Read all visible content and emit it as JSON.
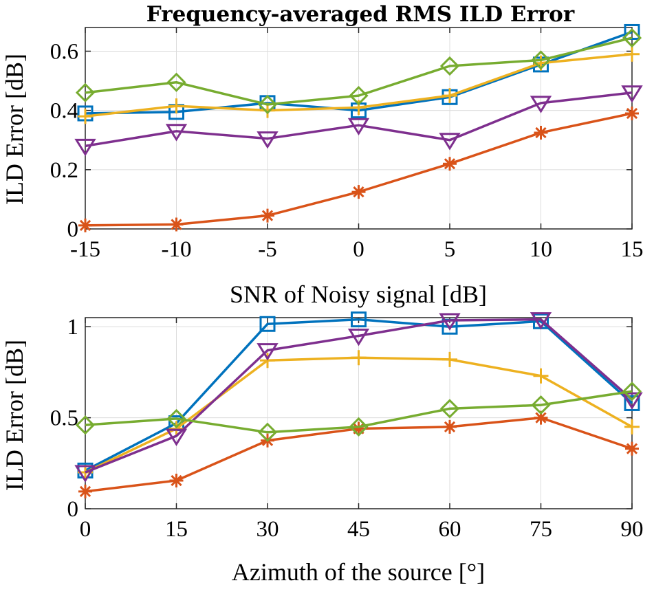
{
  "chart_data": [
    {
      "type": "line",
      "title": "Frequency-averaged RMS ILD Error",
      "xlabel": "SNR of Noisy signal [dB]",
      "ylabel": "ILD Error [dB]",
      "x": [
        -15,
        -10,
        -5,
        0,
        5,
        10,
        15
      ],
      "xticks": [
        -15,
        -10,
        -5,
        0,
        5,
        10,
        15
      ],
      "xtick_labels": [
        "-15",
        "-10",
        "-5",
        "0",
        "5",
        "10",
        "15"
      ],
      "xlim": [
        -15,
        15
      ],
      "yticks": [
        0,
        0.2,
        0.4,
        0.6
      ],
      "ytick_labels": [
        "0",
        "0.2",
        "0.4",
        "0.6"
      ],
      "ylim": [
        0,
        0.68
      ],
      "grid": true,
      "series": [
        {
          "name": "blue-square",
          "color": "#0072BD",
          "marker": "square",
          "values": [
            0.39,
            0.395,
            0.425,
            0.4,
            0.445,
            0.555,
            0.665
          ]
        },
        {
          "name": "orange-asterisk",
          "color": "#D95319",
          "marker": "asterisk",
          "values": [
            0.012,
            0.015,
            0.045,
            0.125,
            0.22,
            0.325,
            0.39
          ]
        },
        {
          "name": "yellow-plus",
          "color": "#EDB120",
          "marker": "plus",
          "values": [
            0.38,
            0.415,
            0.4,
            0.41,
            0.45,
            0.56,
            0.59
          ]
        },
        {
          "name": "purple-triangle",
          "color": "#7E2F8E",
          "marker": "triangle-down",
          "values": [
            0.28,
            0.33,
            0.305,
            0.35,
            0.3,
            0.425,
            0.46
          ]
        },
        {
          "name": "green-diamond",
          "color": "#77AC30",
          "marker": "diamond",
          "values": [
            0.46,
            0.495,
            0.42,
            0.45,
            0.55,
            0.57,
            0.645
          ]
        }
      ]
    },
    {
      "type": "line",
      "title": "",
      "xlabel": "Azimuth of the source [°]",
      "ylabel": "ILD Error [dB]",
      "x": [
        0,
        15,
        30,
        45,
        60,
        75,
        90
      ],
      "xticks": [
        0,
        15,
        30,
        45,
        60,
        75,
        90
      ],
      "xtick_labels": [
        "0",
        "15",
        "30",
        "45",
        "60",
        "75",
        "90"
      ],
      "xlim": [
        0,
        90
      ],
      "yticks": [
        0,
        0.5,
        1
      ],
      "ytick_labels": [
        "0",
        "0.5",
        "1"
      ],
      "ylim": [
        0,
        1.05
      ],
      "grid": true,
      "series": [
        {
          "name": "blue-square",
          "color": "#0072BD",
          "marker": "square",
          "values": [
            0.21,
            0.47,
            1.015,
            1.04,
            1.0,
            1.03,
            0.58
          ]
        },
        {
          "name": "orange-asterisk",
          "color": "#D95319",
          "marker": "asterisk",
          "values": [
            0.095,
            0.155,
            0.375,
            0.44,
            0.45,
            0.5,
            0.33
          ]
        },
        {
          "name": "yellow-plus",
          "color": "#EDB120",
          "marker": "plus",
          "values": [
            0.2,
            0.44,
            0.815,
            0.83,
            0.82,
            0.73,
            0.45
          ]
        },
        {
          "name": "purple-triangle",
          "color": "#7E2F8E",
          "marker": "triangle-down",
          "values": [
            0.2,
            0.4,
            0.87,
            0.95,
            1.035,
            1.04,
            0.6
          ]
        },
        {
          "name": "green-diamond",
          "color": "#77AC30",
          "marker": "diamond",
          "values": [
            0.46,
            0.495,
            0.42,
            0.45,
            0.55,
            0.57,
            0.645
          ]
        }
      ]
    }
  ]
}
